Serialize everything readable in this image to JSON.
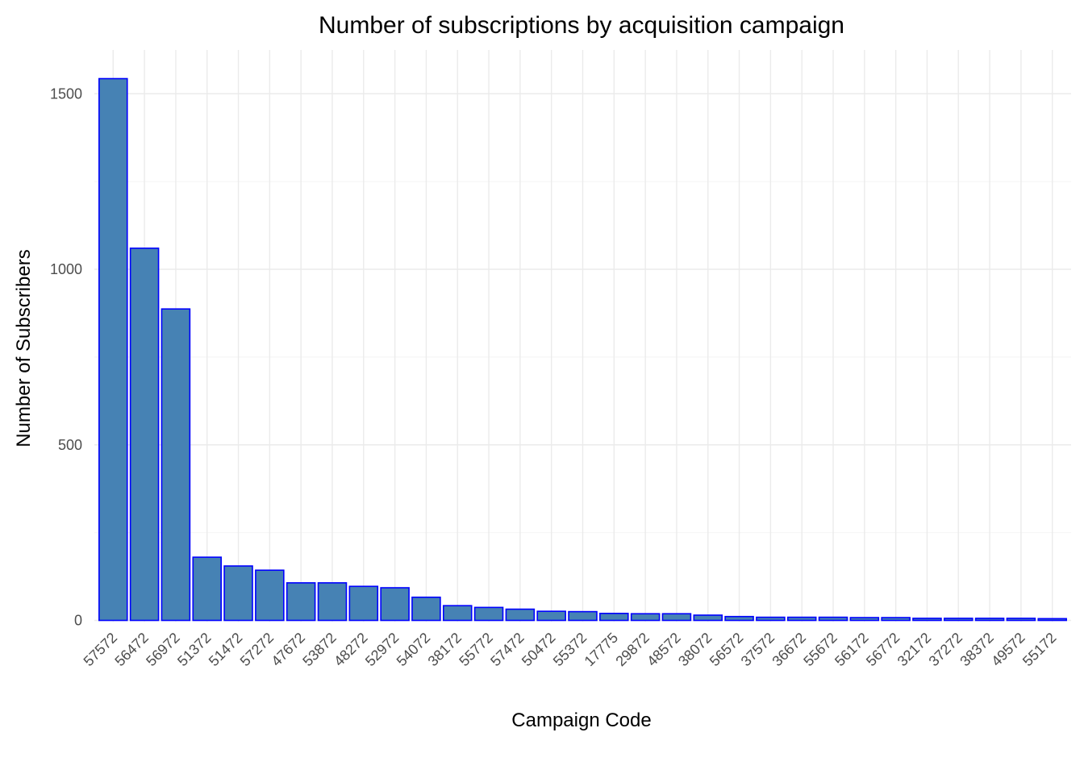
{
  "chart_data": {
    "type": "bar",
    "title": "Number of subscriptions by acquisition campaign",
    "xlabel": "Campaign Code",
    "ylabel": "Number of Subscribers",
    "categories": [
      "57572",
      "56472",
      "56972",
      "51372",
      "51472",
      "57272",
      "47672",
      "53872",
      "48272",
      "52972",
      "54072",
      "38172",
      "55772",
      "57472",
      "50472",
      "55372",
      "17775",
      "29872",
      "48572",
      "38072",
      "56572",
      "37572",
      "36672",
      "55672",
      "56172",
      "56772",
      "32172",
      "37272",
      "38372",
      "49572",
      "55172"
    ],
    "values": [
      1543,
      1060,
      887,
      180,
      155,
      143,
      107,
      107,
      97,
      93,
      66,
      42,
      37,
      32,
      26,
      25,
      20,
      19,
      19,
      15,
      11,
      9,
      9,
      9,
      8,
      8,
      6,
      6,
      6,
      6,
      5
    ],
    "ylim": [
      0,
      1600
    ],
    "yticks": [
      0,
      500,
      1000,
      1500
    ],
    "grid": true,
    "legend": "none",
    "colors": {
      "bar_fill": "#4682b4",
      "bar_stroke": "#0000ff"
    }
  }
}
